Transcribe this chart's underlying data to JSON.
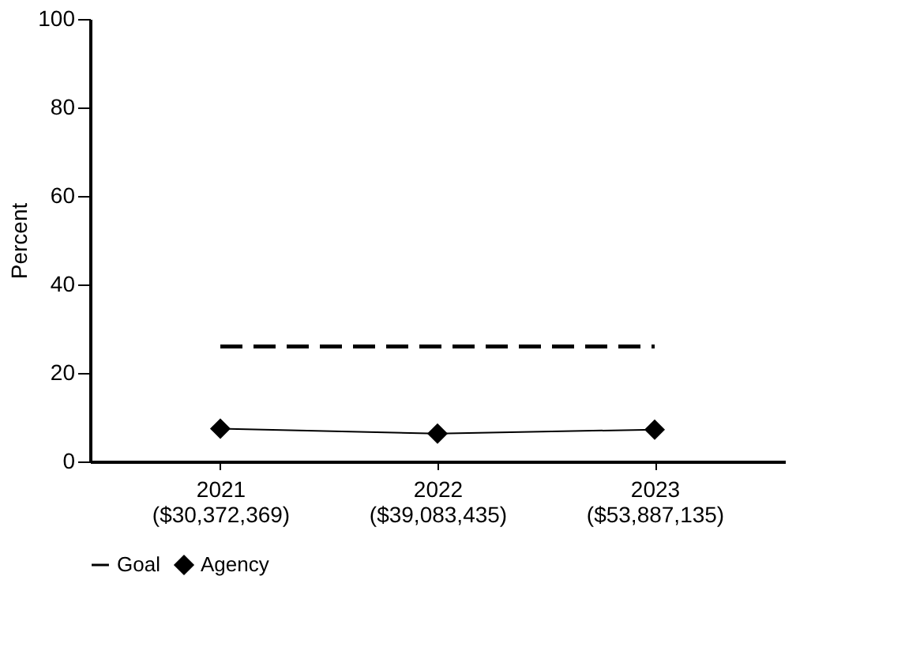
{
  "chart_data": {
    "type": "line",
    "ylabel": "Percent",
    "categories": [
      "2021\n($30,372,369)",
      "2022\n($39,083,435)",
      "2023\n($53,887,135)"
    ],
    "series": [
      {
        "name": "Agency",
        "color": "#000000",
        "values": [
          7.4,
          6.3,
          7.2
        ],
        "marker": "diamond",
        "line_style": "solid"
      },
      {
        "name": "Goal",
        "color": "#000000",
        "values": [
          26,
          26,
          26
        ],
        "marker": "none",
        "line_style": "dashed"
      }
    ],
    "ylim": [
      0,
      100
    ],
    "yticks": [
      0,
      20,
      40,
      60,
      80,
      100
    ],
    "grid": false,
    "legend": "bottom"
  }
}
